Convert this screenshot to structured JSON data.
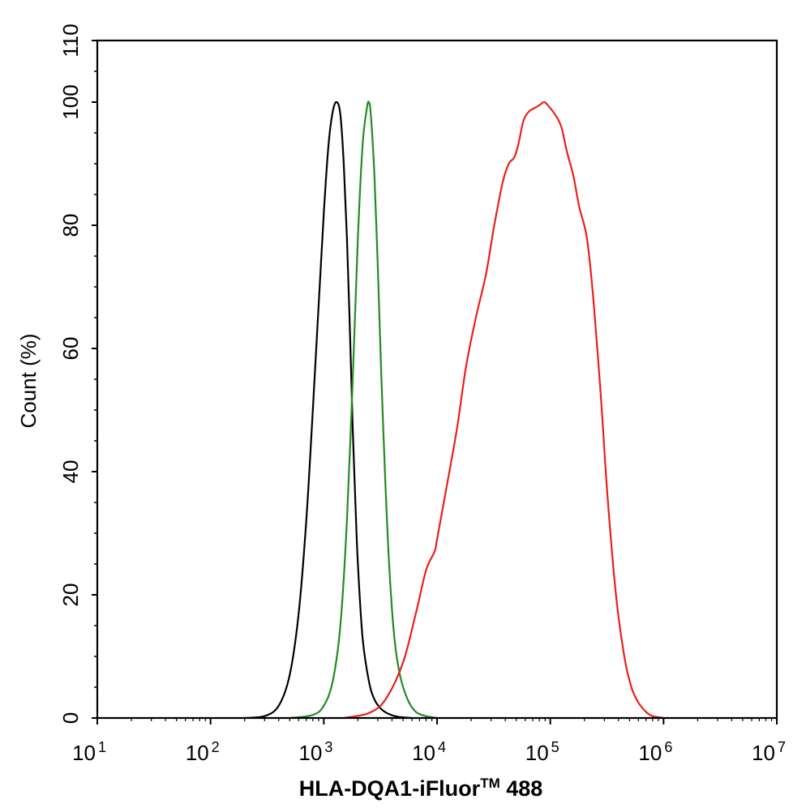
{
  "chart_data": {
    "type": "line",
    "xscale": "log",
    "xlim": [
      10,
      10000000
    ],
    "ylim": [
      0,
      110
    ],
    "xlabel_main": "HLA-DQA1-iFluor",
    "xlabel_super": "TM",
    "xlabel_suffix": " 488",
    "ylabel": "Count  (%)",
    "x_tick_base": "10",
    "x_tick_exponents": [
      "1",
      "2",
      "3",
      "4",
      "5",
      "6",
      "7"
    ],
    "y_ticks": [
      "0",
      "20",
      "40",
      "60",
      "80",
      "100",
      "110"
    ],
    "y_tick_values": [
      0,
      20,
      40,
      60,
      80,
      100,
      110
    ],
    "grid": false,
    "series": [
      {
        "color": "#000000",
        "x": [
          200,
          300,
          400,
          500,
          600,
          700,
          800,
          900,
          1000,
          1100,
          1200,
          1300,
          1400,
          1500,
          1600,
          1700,
          1800,
          1900,
          2000,
          2200,
          2500,
          2800,
          3200,
          3700,
          4500,
          6000
        ],
        "y": [
          0,
          0.3,
          2,
          7,
          17,
          32,
          50,
          67,
          82,
          93,
          98.5,
          100,
          98,
          90,
          78,
          63,
          47,
          35,
          25,
          13,
          6,
          3,
          1.5,
          0.7,
          0.2,
          0
        ]
      },
      {
        "color": "#228B22",
        "x": [
          500,
          800,
          1000,
          1200,
          1400,
          1600,
          1800,
          2000,
          2200,
          2400,
          2500,
          2600,
          2800,
          3000,
          3200,
          3500,
          3800,
          4200,
          4700,
          5500,
          6500,
          8000,
          10000
        ],
        "y": [
          0,
          0.5,
          2,
          6,
          15,
          32,
          55,
          78,
          93,
          99,
          100,
          98,
          88,
          73,
          57,
          38,
          24,
          13,
          7,
          3,
          1,
          0.3,
          0
        ]
      },
      {
        "color": "#E8201A",
        "x": [
          1500,
          2500,
          3500,
          5000,
          6500,
          8000,
          9500,
          10000,
          12000,
          15000,
          18000,
          22000,
          27000,
          32000,
          38000,
          43000,
          48000,
          52000,
          58000,
          65000,
          72000,
          80000,
          88000,
          95000,
          110000,
          125000,
          140000,
          160000,
          180000,
          210000,
          240000,
          280000,
          320000,
          380000,
          450000,
          520000,
          600000,
          700000,
          800000,
          1000000
        ],
        "y": [
          0,
          0.8,
          3,
          9,
          17,
          24,
          27,
          29,
          37,
          47,
          57,
          65,
          72,
          80,
          87,
          90,
          91,
          93,
          97,
          98.5,
          99,
          99.5,
          100,
          99.5,
          98,
          96,
          92,
          88,
          83,
          78,
          68,
          52,
          36,
          20,
          10,
          5,
          2.5,
          1,
          0.3,
          0
        ]
      }
    ]
  }
}
